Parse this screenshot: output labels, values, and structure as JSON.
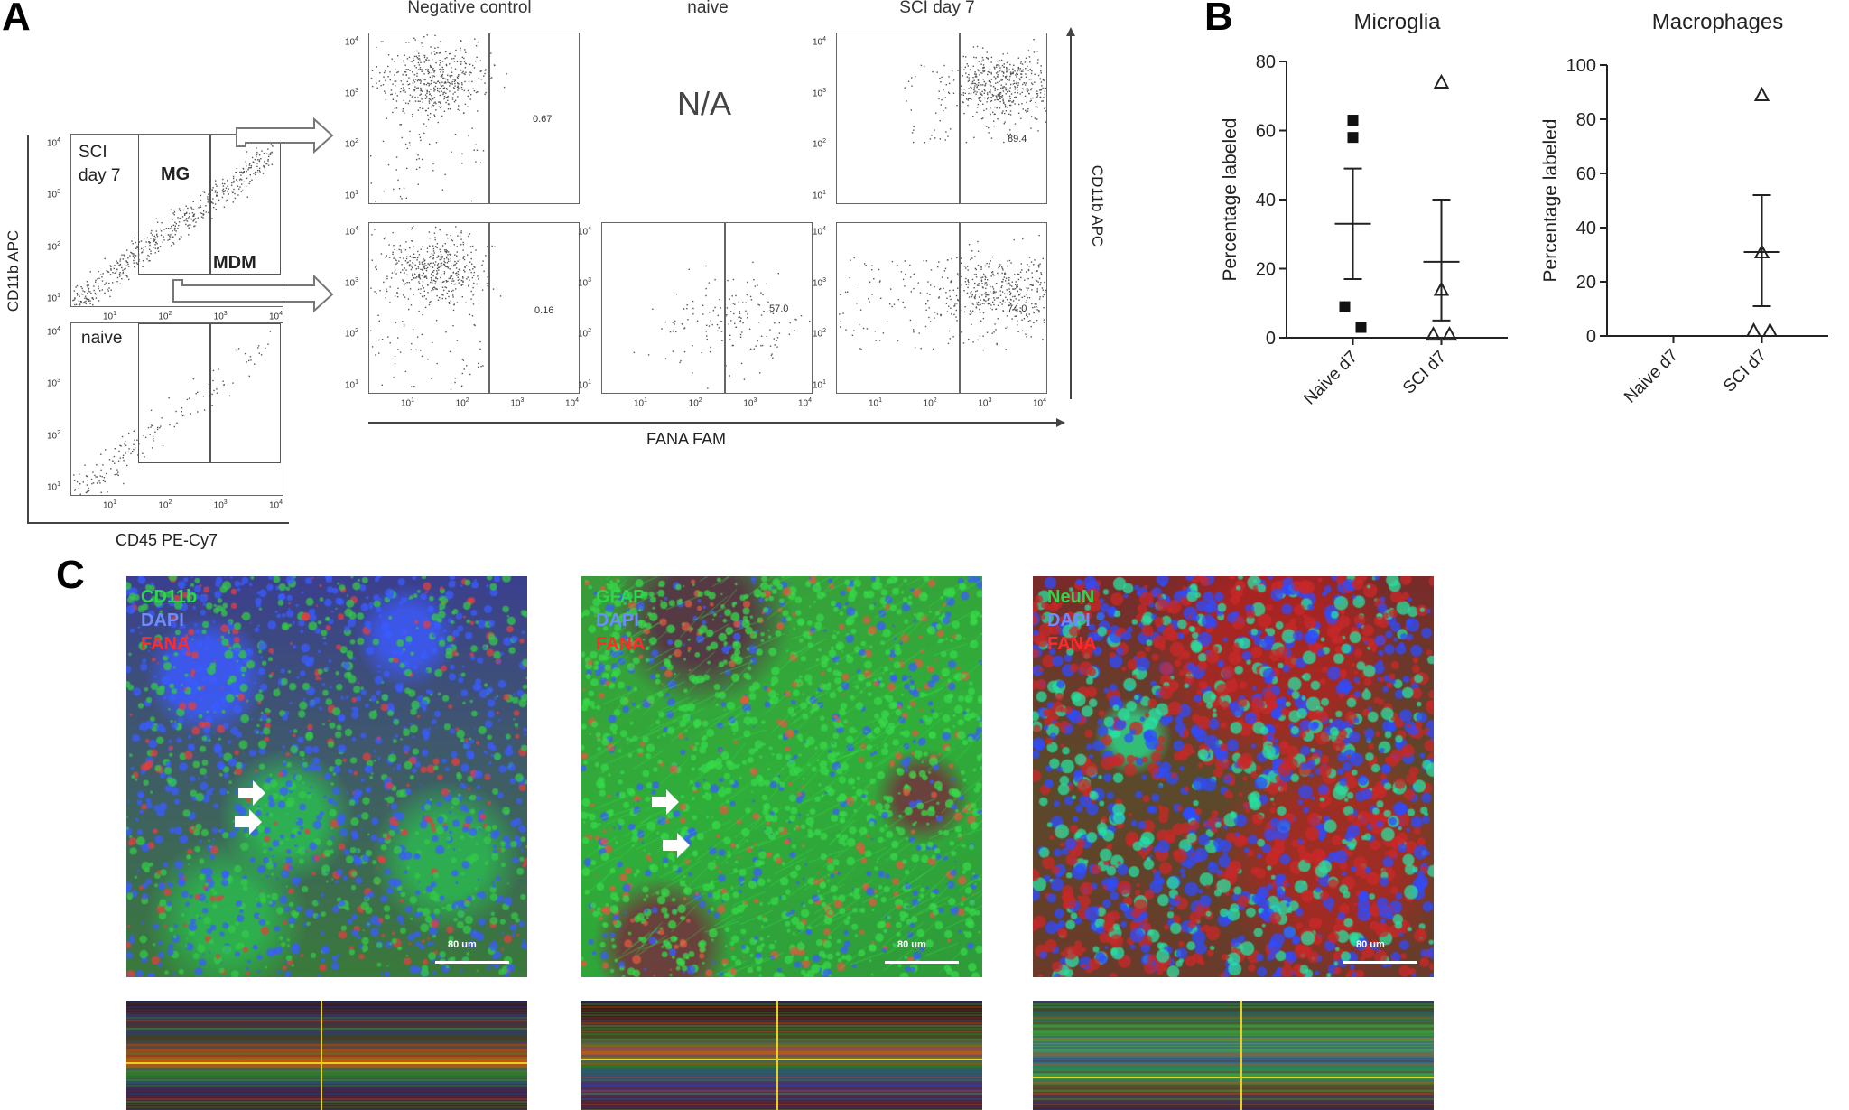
{
  "panels": {
    "a": "A",
    "b": "B",
    "c": "C"
  },
  "flow": {
    "left_top_label_line1": "SCI",
    "left_top_label_line2": "day 7",
    "gate_mg": "MG",
    "gate_mdm": "MDM",
    "left_bottom_label": "naive",
    "left_y_axis": "CD11b APC",
    "left_x_axis": "CD45 PE-Cy7",
    "columns": [
      "Negative control",
      "naive",
      "SCI day 7"
    ],
    "na_text": "N/A",
    "pct_neg_top": "0.67",
    "pct_sci_top": "89.4",
    "pct_neg_bottom": "0.16",
    "pct_naive_bottom": "57.0",
    "pct_sci_bottom": "74.0",
    "right_y_axis": "CD11b APC",
    "bottom_x_axis": "FANA FAM",
    "tick_base": "10",
    "tick_exps": [
      "1",
      "2",
      "3",
      "4"
    ]
  },
  "chart_data": [
    {
      "type": "scatter",
      "title": "Microglia",
      "ylabel": "Percentage labeled",
      "xlabel": "",
      "categories": [
        "Naive d7",
        "SCI d7"
      ],
      "ylim": [
        0,
        80
      ],
      "yticks": [
        0,
        20,
        40,
        60,
        80
      ],
      "series": [
        {
          "name": "Naive d7",
          "marker": "square",
          "points": [
            63,
            58,
            9,
            3
          ],
          "mean": 33,
          "sem_low": 17,
          "sem_high": 49
        },
        {
          "name": "SCI d7",
          "marker": "triangle",
          "points": [
            74,
            14,
            1,
            1
          ],
          "mean": 22,
          "sem_low": 5,
          "sem_high": 40
        }
      ]
    },
    {
      "type": "scatter",
      "title": "Macrophages",
      "ylabel": "Percentage labeled",
      "xlabel": "",
      "categories": [
        "Naive d7",
        "SCI d7"
      ],
      "ylim": [
        0,
        100
      ],
      "yticks": [
        0,
        20,
        40,
        60,
        80,
        100
      ],
      "series": [
        {
          "name": "Naive d7",
          "marker": "square",
          "points": [],
          "mean": null,
          "sem_low": null,
          "sem_high": null
        },
        {
          "name": "SCI d7",
          "marker": "triangle",
          "points": [
            89,
            31,
            2,
            2
          ],
          "mean": 31,
          "sem_low": 11,
          "sem_high": 52
        }
      ]
    }
  ],
  "micrographs": [
    {
      "marker": "CD11b",
      "dapi": "DAPI",
      "fana": "FANA",
      "scale": "80 um",
      "marker_color": "#22c55e"
    },
    {
      "marker": "GFAP",
      "dapi": "DAPI",
      "fana": "FANA",
      "scale": "80 um",
      "marker_color": "#22c55e"
    },
    {
      "marker": "NeuN",
      "dapi": "DAPI",
      "fana": "FANA",
      "scale": "80 um",
      "marker_color": "#22c55e"
    }
  ],
  "colors": {
    "dapi": "#5b7cff",
    "fana": "#ff2a2a",
    "green": "#2ad84a",
    "axis": "#333333"
  }
}
